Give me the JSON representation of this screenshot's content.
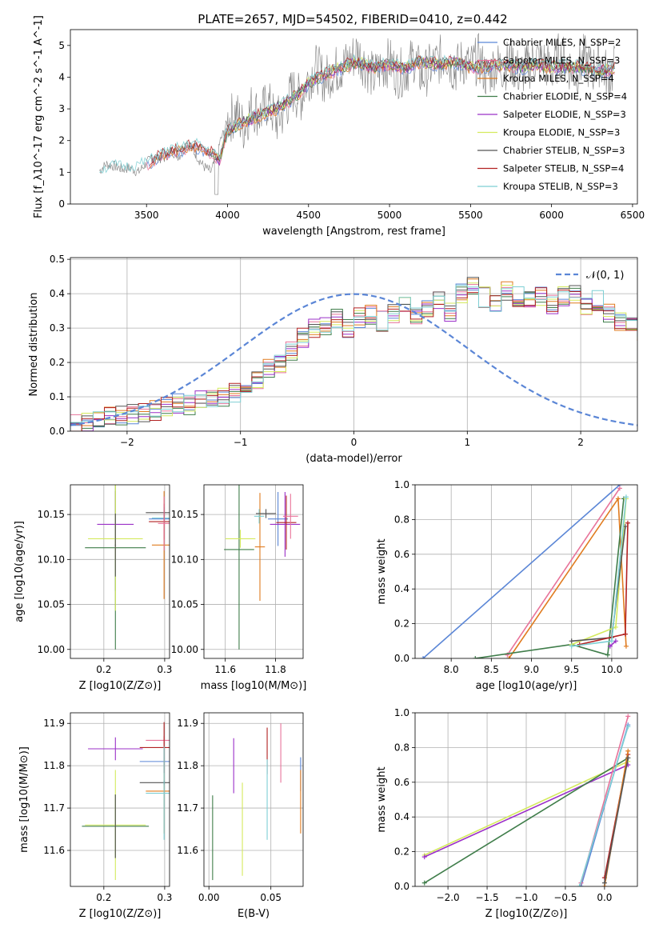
{
  "figure": {
    "title": "PLATE=2657, MJD=54502, FIBERID=0410, z=0.442"
  },
  "chart_data": [
    {
      "id": "spectrum",
      "type": "line",
      "xlabel": "wavelength [Angstrom, rest frame]",
      "ylabel": "Flux [f_λ10^-17 erg cm^-2 s^-1 A^-1]",
      "xlim": [
        3030,
        6530
      ],
      "ylim": [
        0,
        5.5
      ],
      "xticks": [
        3500,
        4000,
        4500,
        5000,
        5500,
        6000,
        6500
      ],
      "yticks": [
        0,
        1,
        2,
        3,
        4,
        5
      ],
      "grid": false,
      "legend_position": "right",
      "observed": {
        "color": "#808080",
        "x": [
          3210,
          3250,
          3300,
          3350,
          3400,
          3450,
          3500,
          3550,
          3600,
          3650,
          3700,
          3750,
          3800,
          3850,
          3900,
          3950,
          4000,
          4050,
          4100,
          4150,
          4200,
          4250,
          4300,
          4350,
          4400,
          4450,
          4500,
          4550,
          4600,
          4650,
          4700,
          4750,
          4800,
          4850,
          4900,
          4950,
          5000,
          5050,
          5100,
          5150,
          5200,
          5250,
          5300,
          5350,
          5400,
          5450,
          5500,
          5550,
          5600,
          5650,
          5700,
          5750,
          5800,
          5850,
          5900,
          5950,
          6000,
          6050,
          6100,
          6150,
          6200,
          6250,
          6300,
          6350,
          6390
        ],
        "y": [
          1.05,
          1.25,
          1.2,
          1.1,
          1.15,
          1.0,
          1.3,
          1.5,
          1.4,
          1.7,
          1.5,
          1.9,
          1.6,
          1.2,
          1.0,
          1.9,
          2.6,
          2.9,
          2.4,
          3.1,
          2.8,
          3.2,
          2.6,
          2.9,
          3.6,
          3.3,
          4.0,
          4.3,
          3.9,
          4.2,
          4.3,
          4.5,
          4.8,
          4.4,
          4.0,
          4.3,
          4.5,
          4.1,
          4.2,
          4.6,
          4.0,
          4.3,
          4.5,
          4.7,
          4.2,
          4.5,
          4.3,
          4.6,
          4.0,
          4.4,
          4.3,
          4.5,
          4.1,
          4.3,
          4.6,
          4.5,
          4.2,
          4.7,
          4.4,
          4.1,
          4.6,
          4.2,
          4.5,
          4.0,
          4.3
        ]
      },
      "legend_entries": [
        "Chabrier MILES, N_SSP=2",
        "Salpeter MILES, N_SSP=3",
        "Kroupa MILES, N_SSP=4",
        "Chabrier ELODIE, N_SSP=4",
        "Salpeter ELODIE, N_SSP=3",
        "Kroupa ELODIE, N_SSP=3",
        "Chabrier STELIB, N_SSP=3",
        "Salpeter STELIB, N_SSP=4",
        "Kroupa STELIB, N_SSP=3"
      ],
      "series": [
        {
          "name": "Chabrier MILES, N_SSP=2",
          "color": "#5b86d6",
          "start": 3500
        },
        {
          "name": "Salpeter MILES, N_SSP=3",
          "color": "#e8739a",
          "start": 3500
        },
        {
          "name": "Kroupa MILES, N_SSP=4",
          "color": "#e07b1f",
          "start": 3520
        },
        {
          "name": "Chabrier ELODIE, N_SSP=4",
          "color": "#3f7d4a",
          "start": 3900
        },
        {
          "name": "Salpeter ELODIE, N_SSP=3",
          "color": "#9b30c8",
          "start": 3900
        },
        {
          "name": "Kroupa ELODIE, N_SSP=3",
          "color": "#d4ea5e",
          "start": 3900
        },
        {
          "name": "Chabrier STELIB, N_SSP=3",
          "color": "#555555",
          "start": 3520
        },
        {
          "name": "Salpeter STELIB, N_SSP=4",
          "color": "#b22222",
          "start": 3520
        },
        {
          "name": "Kroupa STELIB, N_SSP=3",
          "color": "#7ecfd4",
          "start": 3210
        }
      ],
      "model_shape": {
        "x": [
          3210,
          3300,
          3400,
          3500,
          3600,
          3700,
          3800,
          3900,
          3950,
          4000,
          4100,
          4200,
          4300,
          4400,
          4500,
          4600,
          4700,
          4800,
          4900,
          5000,
          5100,
          5200,
          5300,
          5400,
          5500,
          5600,
          5700,
          5800,
          5900,
          6000,
          6100,
          6200,
          6300,
          6390
        ],
        "y": [
          1.0,
          1.15,
          1.1,
          1.25,
          1.55,
          1.7,
          1.85,
          1.6,
          1.4,
          2.3,
          2.6,
          2.8,
          3.0,
          3.3,
          3.8,
          4.1,
          4.3,
          4.5,
          4.3,
          4.4,
          4.3,
          4.5,
          4.4,
          4.5,
          4.3,
          4.35,
          4.4,
          4.3,
          4.4,
          4.3,
          4.35,
          4.3,
          4.2,
          4.25
        ]
      }
    },
    {
      "id": "residuals",
      "type": "bar",
      "xlabel": "(data-model)/error",
      "ylabel": "Normed distribution",
      "xlim": [
        -2.5,
        2.5
      ],
      "ylim": [
        0,
        0.505
      ],
      "xticks": [
        -2,
        -1,
        0,
        1,
        2
      ],
      "yticks": [
        0.0,
        0.1,
        0.2,
        0.3,
        0.4,
        0.5
      ],
      "grid": true,
      "legend_position": "top-right",
      "reference_curve": {
        "name": "𝒩(0, 1)",
        "color": "#5b86d6",
        "mu": 0,
        "sigma": 1
      },
      "bin_width": 0.1,
      "bin_start": -2.5,
      "base_values": [
        0.02,
        0.025,
        0.03,
        0.04,
        0.045,
        0.05,
        0.055,
        0.06,
        0.07,
        0.08,
        0.075,
        0.09,
        0.095,
        0.1,
        0.11,
        0.13,
        0.15,
        0.18,
        0.2,
        0.23,
        0.27,
        0.3,
        0.31,
        0.33,
        0.3,
        0.33,
        0.34,
        0.32,
        0.34,
        0.37,
        0.33,
        0.36,
        0.38,
        0.35,
        0.4,
        0.42,
        0.39,
        0.37,
        0.41,
        0.39,
        0.38,
        0.39,
        0.37,
        0.39,
        0.4,
        0.36,
        0.38,
        0.34,
        0.32,
        0.31,
        0.29,
        0.27,
        0.28,
        0.26,
        0.25,
        0.23,
        0.2,
        0.19,
        0.17,
        0.16,
        0.15,
        0.14,
        0.11,
        0.1,
        0.09,
        0.08,
        0.07,
        0.07,
        0.06,
        0.05,
        0.05,
        0.04,
        0.04,
        0.035,
        0.03,
        0.03,
        0.025,
        0.025,
        0.03,
        0.03
      ]
    },
    {
      "id": "age-vs-Z",
      "type": "scatter",
      "xlabel": "Z [log10(Z/Z⊙)]",
      "ylabel": "age  [log10(age/yr)]",
      "xlim": [
        0.145,
        0.308
      ],
      "ylim": [
        9.99,
        10.183
      ],
      "xticks": [
        0.2,
        0.3
      ],
      "yticks": [
        10.0,
        10.05,
        10.1,
        10.15
      ],
      "grid": true,
      "points": [
        {
          "x": 0.219,
          "y": 10.101,
          "xerr": 0.001,
          "yerr": 0.036,
          "color": "#5b86d6"
        },
        {
          "x": 0.219,
          "y": 10.139,
          "xerr": 0.03,
          "yerr": 0.037,
          "color": "#9b30c8"
        },
        {
          "x": 0.219,
          "y": 10.113,
          "xerr": 0.05,
          "yerr": 0.113,
          "color": "#3f7d4a"
        },
        {
          "x": 0.219,
          "y": 10.123,
          "xerr": 0.045,
          "yerr": 0.08,
          "color": "#d4ea5e"
        },
        {
          "x": 0.219,
          "y": 10.116,
          "xerr": 0.001,
          "yerr": 0.035,
          "color": "#555555"
        },
        {
          "x": 0.299,
          "y": 10.146,
          "xerr": 0.02,
          "yerr": 0.008,
          "color": "#7ecfd4"
        },
        {
          "x": 0.299,
          "y": 10.145,
          "xerr": 0.025,
          "yerr": 0.005,
          "color": "#5b86d6"
        },
        {
          "x": 0.299,
          "y": 10.116,
          "xerr": 0.02,
          "yerr": 0.06,
          "color": "#e07b1f"
        },
        {
          "x": 0.299,
          "y": 10.142,
          "xerr": 0.025,
          "yerr": 0.02,
          "color": "#b22222"
        },
        {
          "x": 0.299,
          "y": 10.152,
          "xerr": 0.03,
          "yerr": 0.006,
          "color": "#555555"
        },
        {
          "x": 0.299,
          "y": 10.14,
          "xerr": 0.01,
          "yerr": 0.03,
          "color": "#e8739a"
        }
      ]
    },
    {
      "id": "age-vs-mass",
      "type": "scatter",
      "xlabel": "mass [log10(M/M⊙)]",
      "ylabel": "",
      "xlim": [
        11.515,
        11.91
      ],
      "ylim": [
        9.99,
        10.183
      ],
      "xticks": [
        11.6,
        11.8
      ],
      "yticks": [
        10.0,
        10.05,
        10.1,
        10.15
      ],
      "grid": true,
      "points": [
        {
          "x": 11.655,
          "y": 10.111,
          "xerr": 0.06,
          "yerr": 0.111,
          "color": "#3f7d4a"
        },
        {
          "x": 11.66,
          "y": 10.123,
          "xerr": 0.06,
          "yerr": 0.01,
          "color": "#d4ea5e"
        },
        {
          "x": 11.738,
          "y": 10.114,
          "xerr": 0.02,
          "yerr": 0.06,
          "color": "#e07b1f"
        },
        {
          "x": 11.735,
          "y": 10.148,
          "xerr": 0.02,
          "yerr": 0.008,
          "color": "#7ecfd4"
        },
        {
          "x": 11.762,
          "y": 10.151,
          "xerr": 0.04,
          "yerr": 0.005,
          "color": "#555555"
        },
        {
          "x": 11.81,
          "y": 10.145,
          "xerr": 0.04,
          "yerr": 0.03,
          "color": "#5b86d6"
        },
        {
          "x": 11.838,
          "y": 10.139,
          "xerr": 0.06,
          "yerr": 0.036,
          "color": "#9b30c8"
        },
        {
          "x": 11.843,
          "y": 10.141,
          "xerr": 0.04,
          "yerr": 0.03,
          "color": "#b22222"
        },
        {
          "x": 11.86,
          "y": 10.148,
          "xerr": 0.03,
          "yerr": 0.025,
          "color": "#e8739a"
        }
      ]
    },
    {
      "id": "massweight-vs-age",
      "type": "line",
      "xlabel": "age  [log10(age/yr)]",
      "ylabel": "mass weight",
      "xlim": [
        7.55,
        10.32
      ],
      "ylim": [
        0,
        1
      ],
      "xticks": [
        8.0,
        8.5,
        9.0,
        9.5,
        10.0
      ],
      "yticks": [
        0.0,
        0.2,
        0.4,
        0.6,
        0.8,
        1.0
      ],
      "grid": true,
      "series": [
        {
          "color": "#5b86d6",
          "x": [
            7.65,
            10.1
          ],
          "y": [
            0.0,
            1.0
          ]
        },
        {
          "color": "#e8739a",
          "x": [
            8.7,
            10.1
          ],
          "y": [
            0.02,
            0.98
          ]
        },
        {
          "color": "#e07b1f",
          "x": [
            8.72,
            10.08,
            10.18
          ],
          "y": [
            0.0,
            0.92,
            0.07
          ]
        },
        {
          "color": "#3f7d4a",
          "x": [
            8.3,
            9.5,
            9.95,
            10.15
          ],
          "y": [
            0.0,
            0.08,
            0.02,
            0.92
          ]
        },
        {
          "color": "#9b30c8",
          "x": [
            9.98,
            10.05
          ],
          "y": [
            0.07,
            0.1
          ]
        },
        {
          "color": "#d4ea5e",
          "x": [
            9.5,
            10.05,
            10.18
          ],
          "y": [
            0.08,
            0.18,
            0.92
          ]
        },
        {
          "color": "#555555",
          "x": [
            9.5,
            10.0,
            10.17
          ],
          "y": [
            0.1,
            0.12,
            0.76
          ]
        },
        {
          "color": "#b22222",
          "x": [
            9.6,
            10.17,
            10.2
          ],
          "y": [
            0.08,
            0.14,
            0.78
          ]
        },
        {
          "color": "#7ecfd4",
          "x": [
            9.5,
            10.0,
            10.18
          ],
          "y": [
            0.07,
            0.1,
            0.93
          ]
        }
      ]
    },
    {
      "id": "mass-vs-Z",
      "type": "scatter",
      "xlabel": "Z [log10(Z/Z⊙)]",
      "ylabel": "mass [log10(M/M⊙)]",
      "xlim": [
        0.145,
        0.308
      ],
      "ylim": [
        11.515,
        11.925
      ],
      "xticks": [
        0.2,
        0.3
      ],
      "yticks": [
        11.6,
        11.7,
        11.8,
        11.9
      ],
      "grid": true,
      "points": [
        {
          "x": 0.219,
          "y": 11.84,
          "xerr": 0.045,
          "yerr": 0.027,
          "color": "#9b30c8"
        },
        {
          "x": 0.219,
          "y": 11.657,
          "xerr": 0.055,
          "yerr": 0.075,
          "color": "#3f7d4a"
        },
        {
          "x": 0.219,
          "y": 11.66,
          "xerr": 0.05,
          "yerr": 0.13,
          "color": "#d4ea5e"
        },
        {
          "x": 0.219,
          "y": 11.657,
          "xerr": 0.001,
          "yerr": 0.075,
          "color": "#555555"
        },
        {
          "x": 0.299,
          "y": 11.81,
          "xerr": 0.04,
          "yerr": 0.01,
          "color": "#5b86d6"
        },
        {
          "x": 0.299,
          "y": 11.86,
          "xerr": 0.03,
          "yerr": 0.01,
          "color": "#e8739a"
        },
        {
          "x": 0.299,
          "y": 11.74,
          "xerr": 0.03,
          "yerr": 0.1,
          "color": "#e07b1f"
        },
        {
          "x": 0.299,
          "y": 11.843,
          "xerr": 0.04,
          "yerr": 0.06,
          "color": "#b22222"
        },
        {
          "x": 0.299,
          "y": 11.76,
          "xerr": 0.04,
          "yerr": 0.005,
          "color": "#555555"
        },
        {
          "x": 0.299,
          "y": 11.735,
          "xerr": 0.03,
          "yerr": 0.11,
          "color": "#7ecfd4"
        }
      ]
    },
    {
      "id": "mass-vs-EBV",
      "type": "scatter",
      "xlabel": "E(B-V)",
      "ylabel": "",
      "xlim": [
        -0.004,
        0.076
      ],
      "ylim": [
        11.515,
        11.925
      ],
      "xticks": [
        0.0,
        0.05
      ],
      "yticks": [
        11.6,
        11.7,
        11.8,
        11.9
      ],
      "grid": true,
      "points": [
        {
          "x": 0.003,
          "y": 11.63,
          "xerr": 0,
          "yerr": 0.1,
          "color": "#3f7d4a"
        },
        {
          "x": 0.02,
          "y": 11.8,
          "xerr": 0,
          "yerr": 0.065,
          "color": "#9b30c8"
        },
        {
          "x": 0.027,
          "y": 11.65,
          "xerr": 0,
          "yerr": 0.11,
          "color": "#d4ea5e"
        },
        {
          "x": 0.047,
          "y": 11.835,
          "xerr": 0,
          "yerr": 0.055,
          "color": "#b22222"
        },
        {
          "x": 0.047,
          "y": 11.72,
          "xerr": 0,
          "yerr": 0.095,
          "color": "#7ecfd4"
        },
        {
          "x": 0.058,
          "y": 11.83,
          "xerr": 0,
          "yerr": 0.07,
          "color": "#e8739a"
        },
        {
          "x": 0.074,
          "y": 11.78,
          "xerr": 0,
          "yerr": 0.04,
          "color": "#5b86d6"
        },
        {
          "x": 0.074,
          "y": 11.715,
          "xerr": 0,
          "yerr": 0.075,
          "color": "#e07b1f"
        }
      ]
    },
    {
      "id": "massweight-vs-Z",
      "type": "line",
      "xlabel": "Z [log10(Z/Z⊙)]",
      "ylabel": "mass weight",
      "xlim": [
        -2.42,
        0.42
      ],
      "ylim": [
        0,
        1
      ],
      "xticks": [
        -2.0,
        -1.5,
        -1.0,
        -0.5,
        0.0
      ],
      "yticks": [
        0.0,
        0.2,
        0.4,
        0.6,
        0.8,
        1.0
      ],
      "xtick_labels": [
        "−2.0",
        "−1.5",
        "−1.0",
        "−0.5",
        "0.0"
      ],
      "grid": true,
      "series": [
        {
          "color": "#d4ea5e",
          "x": [
            -2.3,
            0.3
          ],
          "y": [
            0.18,
            0.72
          ]
        },
        {
          "color": "#9b30c8",
          "x": [
            -2.3,
            0.3
          ],
          "y": [
            0.17,
            0.7
          ]
        },
        {
          "color": "#3f7d4a",
          "x": [
            -2.3,
            0.3
          ],
          "y": [
            0.02,
            0.74
          ]
        },
        {
          "color": "#5b86d6",
          "x": [
            -0.3,
            0.3
          ],
          "y": [
            0.0,
            0.93
          ]
        },
        {
          "color": "#e8739a",
          "x": [
            -0.3,
            0.3
          ],
          "y": [
            0.02,
            0.98
          ]
        },
        {
          "color": "#7ecfd4",
          "x": [
            -0.32,
            0.3
          ],
          "y": [
            0.0,
            0.92
          ]
        },
        {
          "color": "#b22222",
          "x": [
            0.0,
            0.3
          ],
          "y": [
            0.05,
            0.76
          ]
        },
        {
          "color": "#e07b1f",
          "x": [
            0.0,
            0.3
          ],
          "y": [
            0.0,
            0.78
          ]
        },
        {
          "color": "#555555",
          "x": [
            0.0,
            0.3
          ],
          "y": [
            0.02,
            0.74
          ]
        }
      ]
    }
  ]
}
